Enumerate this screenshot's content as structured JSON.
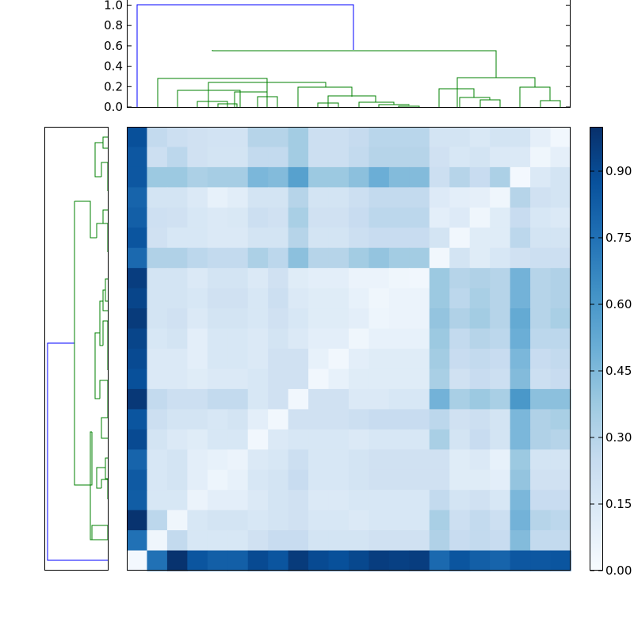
{
  "chart_data": {
    "type": "heatmap",
    "title": "",
    "xlabel": "",
    "ylabel": "",
    "colormap": "Blues",
    "value_range": [
      0.0,
      1.0
    ],
    "n": 22,
    "matrix_row_order": "top-to-bottom",
    "matrix": [
      [
        0.88,
        0.26,
        0.22,
        0.2,
        0.19,
        0.19,
        0.3,
        0.3,
        0.36,
        0.22,
        0.22,
        0.25,
        0.29,
        0.29,
        0.29,
        0.18,
        0.18,
        0.15,
        0.18,
        0.18,
        0.09,
        0.03
      ],
      [
        0.85,
        0.22,
        0.28,
        0.2,
        0.18,
        0.18,
        0.26,
        0.26,
        0.36,
        0.22,
        0.22,
        0.26,
        0.3,
        0.3,
        0.3,
        0.2,
        0.16,
        0.18,
        0.14,
        0.14,
        0.04,
        0.09
      ],
      [
        0.85,
        0.38,
        0.38,
        0.33,
        0.35,
        0.35,
        0.46,
        0.44,
        0.56,
        0.38,
        0.38,
        0.42,
        0.5,
        0.44,
        0.44,
        0.22,
        0.3,
        0.24,
        0.33,
        0.02,
        0.14,
        0.18
      ],
      [
        0.8,
        0.18,
        0.18,
        0.14,
        0.08,
        0.11,
        0.18,
        0.18,
        0.3,
        0.18,
        0.18,
        0.22,
        0.26,
        0.26,
        0.26,
        0.13,
        0.1,
        0.09,
        0.04,
        0.3,
        0.2,
        0.18
      ],
      [
        0.82,
        0.21,
        0.2,
        0.16,
        0.14,
        0.15,
        0.22,
        0.2,
        0.34,
        0.2,
        0.2,
        0.24,
        0.28,
        0.28,
        0.28,
        0.1,
        0.13,
        0.04,
        0.12,
        0.24,
        0.16,
        0.14
      ],
      [
        0.86,
        0.2,
        0.16,
        0.16,
        0.14,
        0.14,
        0.18,
        0.18,
        0.3,
        0.18,
        0.18,
        0.22,
        0.24,
        0.24,
        0.24,
        0.18,
        0.03,
        0.12,
        0.12,
        0.28,
        0.18,
        0.18
      ],
      [
        0.78,
        0.32,
        0.32,
        0.28,
        0.26,
        0.26,
        0.33,
        0.28,
        0.42,
        0.3,
        0.3,
        0.36,
        0.4,
        0.36,
        0.36,
        0.03,
        0.18,
        0.12,
        0.16,
        0.2,
        0.22,
        0.22
      ],
      [
        0.95,
        0.18,
        0.18,
        0.14,
        0.18,
        0.18,
        0.14,
        0.2,
        0.12,
        0.1,
        0.1,
        0.06,
        0.06,
        0.04,
        0.03,
        0.38,
        0.3,
        0.32,
        0.3,
        0.48,
        0.3,
        0.32
      ],
      [
        0.92,
        0.18,
        0.18,
        0.16,
        0.2,
        0.2,
        0.16,
        0.22,
        0.14,
        0.12,
        0.12,
        0.08,
        0.04,
        0.06,
        0.06,
        0.38,
        0.28,
        0.34,
        0.3,
        0.48,
        0.3,
        0.32
      ],
      [
        0.96,
        0.18,
        0.2,
        0.14,
        0.18,
        0.18,
        0.16,
        0.2,
        0.16,
        0.12,
        0.12,
        0.1,
        0.05,
        0.06,
        0.06,
        0.4,
        0.32,
        0.36,
        0.3,
        0.52,
        0.3,
        0.34
      ],
      [
        0.92,
        0.16,
        0.18,
        0.1,
        0.16,
        0.16,
        0.14,
        0.18,
        0.14,
        0.1,
        0.1,
        0.04,
        0.08,
        0.08,
        0.08,
        0.38,
        0.26,
        0.3,
        0.28,
        0.5,
        0.28,
        0.28
      ],
      [
        0.9,
        0.14,
        0.14,
        0.1,
        0.16,
        0.16,
        0.14,
        0.2,
        0.2,
        0.08,
        0.03,
        0.1,
        0.12,
        0.12,
        0.12,
        0.36,
        0.24,
        0.26,
        0.24,
        0.46,
        0.24,
        0.26
      ],
      [
        0.88,
        0.14,
        0.14,
        0.12,
        0.14,
        0.14,
        0.16,
        0.2,
        0.2,
        0.03,
        0.08,
        0.12,
        0.12,
        0.12,
        0.12,
        0.34,
        0.2,
        0.24,
        0.22,
        0.44,
        0.22,
        0.24
      ],
      [
        0.97,
        0.26,
        0.22,
        0.22,
        0.26,
        0.26,
        0.16,
        0.2,
        0.03,
        0.2,
        0.2,
        0.14,
        0.14,
        0.16,
        0.16,
        0.48,
        0.34,
        0.38,
        0.34,
        0.6,
        0.42,
        0.42
      ],
      [
        0.86,
        0.22,
        0.18,
        0.18,
        0.16,
        0.18,
        0.1,
        0.03,
        0.2,
        0.2,
        0.2,
        0.22,
        0.24,
        0.24,
        0.24,
        0.28,
        0.2,
        0.22,
        0.18,
        0.46,
        0.32,
        0.34
      ],
      [
        0.9,
        0.18,
        0.14,
        0.12,
        0.16,
        0.16,
        0.03,
        0.14,
        0.16,
        0.16,
        0.16,
        0.14,
        0.16,
        0.16,
        0.16,
        0.34,
        0.18,
        0.24,
        0.18,
        0.46,
        0.32,
        0.3
      ],
      [
        0.8,
        0.16,
        0.18,
        0.1,
        0.08,
        0.06,
        0.14,
        0.16,
        0.22,
        0.16,
        0.16,
        0.18,
        0.2,
        0.2,
        0.2,
        0.2,
        0.12,
        0.14,
        0.08,
        0.38,
        0.18,
        0.18
      ],
      [
        0.84,
        0.16,
        0.18,
        0.1,
        0.05,
        0.08,
        0.16,
        0.18,
        0.24,
        0.16,
        0.16,
        0.18,
        0.2,
        0.2,
        0.2,
        0.2,
        0.12,
        0.12,
        0.1,
        0.4,
        0.2,
        0.2
      ],
      [
        0.83,
        0.16,
        0.16,
        0.06,
        0.1,
        0.1,
        0.14,
        0.18,
        0.2,
        0.14,
        0.14,
        0.16,
        0.16,
        0.16,
        0.16,
        0.26,
        0.18,
        0.2,
        0.16,
        0.46,
        0.24,
        0.24
      ],
      [
        0.99,
        0.28,
        0.04,
        0.16,
        0.18,
        0.18,
        0.16,
        0.18,
        0.2,
        0.16,
        0.16,
        0.14,
        0.16,
        0.16,
        0.16,
        0.34,
        0.22,
        0.26,
        0.22,
        0.48,
        0.3,
        0.28
      ],
      [
        0.75,
        0.04,
        0.26,
        0.16,
        0.16,
        0.16,
        0.2,
        0.24,
        0.24,
        0.18,
        0.18,
        0.18,
        0.2,
        0.2,
        0.2,
        0.32,
        0.24,
        0.26,
        0.24,
        0.44,
        0.26,
        0.26
      ],
      [
        0.02,
        0.75,
        0.99,
        0.86,
        0.82,
        0.82,
        0.9,
        0.86,
        0.96,
        0.9,
        0.88,
        0.91,
        0.95,
        0.94,
        0.95,
        0.78,
        0.86,
        0.82,
        0.8,
        0.85,
        0.85,
        0.86
      ]
    ],
    "colorbar": {
      "range": [
        0.0,
        1.0
      ],
      "tick_labels": [
        "0.00",
        "0.15",
        "0.30",
        "0.45",
        "0.60",
        "0.75",
        "0.90"
      ],
      "tick_values": [
        0.0,
        0.15,
        0.3,
        0.45,
        0.6,
        0.75,
        0.9
      ]
    },
    "top_dendrogram": {
      "ylim": [
        0.0,
        1.05
      ],
      "tick_labels": [
        "0.0",
        "0.2",
        "0.4",
        "0.6",
        "0.8",
        "1.0"
      ],
      "tick_values": [
        0.0,
        0.2,
        0.4,
        0.6,
        0.8,
        1.0
      ],
      "link_colors": {
        "root": "#0000ff",
        "cluster": "#008000"
      }
    },
    "left_dendrogram": {
      "link_colors": {
        "root": "#0000ff",
        "cluster": "#008000"
      }
    }
  }
}
